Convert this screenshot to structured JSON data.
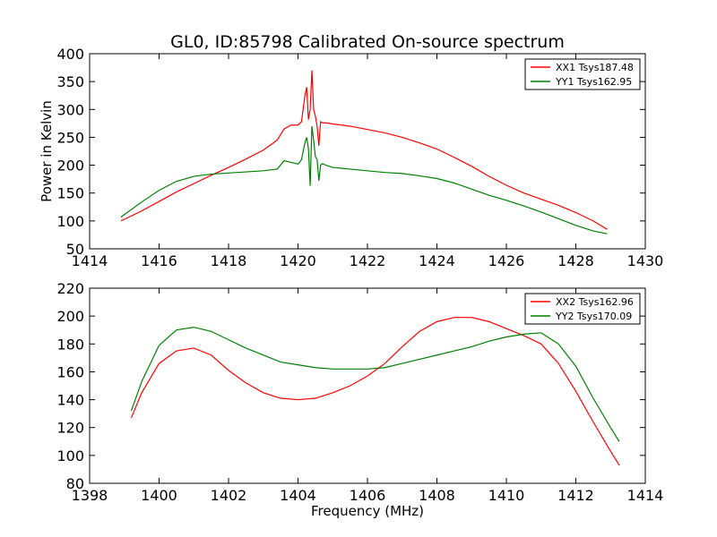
{
  "title": "GL0, ID:85798 Calibrated On-source spectrum",
  "chart_data": [
    {
      "type": "line",
      "ylabel": "Power in Kelvin",
      "xlabel": "",
      "xlim": [
        1414,
        1430
      ],
      "ylim": [
        50,
        400
      ],
      "xticks": [
        1414,
        1416,
        1418,
        1420,
        1422,
        1424,
        1426,
        1428,
        1430
      ],
      "yticks": [
        50,
        100,
        150,
        200,
        250,
        300,
        350,
        400
      ],
      "legend_position": "top-right",
      "series": [
        {
          "name": "XX1 Tsys187.48",
          "color": "#ff0000",
          "x": [
            1414.9,
            1415.5,
            1416.0,
            1416.5,
            1417.0,
            1417.5,
            1418.0,
            1418.5,
            1419.0,
            1419.4,
            1419.6,
            1419.8,
            1420.0,
            1420.1,
            1420.2,
            1420.25,
            1420.3,
            1420.35,
            1420.4,
            1420.45,
            1420.5,
            1420.55,
            1420.6,
            1420.65,
            1420.7,
            1420.8,
            1421.0,
            1421.5,
            1422.0,
            1422.5,
            1423.0,
            1423.5,
            1424.0,
            1424.5,
            1425.0,
            1425.5,
            1426.0,
            1426.5,
            1427.0,
            1427.5,
            1428.0,
            1428.5,
            1428.9
          ],
          "y": [
            100,
            118,
            135,
            152,
            167,
            182,
            196,
            211,
            227,
            245,
            265,
            272,
            272,
            278,
            325,
            340,
            282,
            300,
            370,
            300,
            288,
            270,
            235,
            278,
            276,
            276,
            274,
            270,
            264,
            258,
            250,
            240,
            229,
            214,
            198,
            180,
            164,
            150,
            139,
            128,
            115,
            100,
            85
          ]
        },
        {
          "name": "YY1 Tsys162.95",
          "color": "#008000",
          "x": [
            1414.9,
            1415.5,
            1416.0,
            1416.5,
            1417.0,
            1417.5,
            1418.0,
            1418.5,
            1419.0,
            1419.4,
            1419.6,
            1419.8,
            1420.0,
            1420.1,
            1420.2,
            1420.25,
            1420.3,
            1420.35,
            1420.4,
            1420.45,
            1420.5,
            1420.55,
            1420.6,
            1420.65,
            1420.7,
            1420.8,
            1421.0,
            1421.5,
            1422.0,
            1422.5,
            1423.0,
            1423.5,
            1424.0,
            1424.5,
            1425.0,
            1425.5,
            1426.0,
            1426.5,
            1427.0,
            1427.5,
            1428.0,
            1428.5,
            1428.9
          ],
          "y": [
            107,
            134,
            155,
            171,
            180,
            184,
            186,
            188,
            190,
            193,
            208,
            205,
            202,
            210,
            240,
            250,
            230,
            163,
            270,
            245,
            215,
            210,
            172,
            200,
            203,
            200,
            196,
            193,
            190,
            187,
            185,
            181,
            176,
            168,
            157,
            146,
            137,
            127,
            116,
            104,
            92,
            82,
            77
          ]
        }
      ]
    },
    {
      "type": "line",
      "xlabel": "Frequency (MHz)",
      "ylabel": "",
      "xlim": [
        1398,
        1414
      ],
      "ylim": [
        80,
        220
      ],
      "xticks": [
        1398,
        1400,
        1402,
        1404,
        1406,
        1408,
        1410,
        1412,
        1414
      ],
      "yticks": [
        80,
        100,
        120,
        140,
        160,
        180,
        200,
        220
      ],
      "legend_position": "top-right",
      "series": [
        {
          "name": "XX2 Tsys162.96",
          "color": "#ff0000",
          "x": [
            1399.2,
            1399.5,
            1400.0,
            1400.5,
            1401.0,
            1401.5,
            1402.0,
            1402.5,
            1403.0,
            1403.5,
            1404.0,
            1404.5,
            1405.0,
            1405.5,
            1406.0,
            1406.5,
            1407.0,
            1407.5,
            1408.0,
            1408.5,
            1409.0,
            1409.5,
            1410.0,
            1410.5,
            1411.0,
            1411.5,
            1412.0,
            1412.5,
            1413.0,
            1413.25
          ],
          "y": [
            127,
            145,
            166,
            175,
            177,
            172,
            161,
            152,
            145,
            141,
            140,
            141,
            145,
            150,
            157,
            166,
            178,
            189,
            196,
            199,
            199,
            196,
            191,
            186,
            180,
            166,
            146,
            124,
            103,
            93
          ]
        },
        {
          "name": "YY2 Tsys170.09",
          "color": "#008000",
          "x": [
            1399.2,
            1399.5,
            1400.0,
            1400.5,
            1401.0,
            1401.5,
            1402.0,
            1402.5,
            1403.0,
            1403.5,
            1404.0,
            1404.5,
            1405.0,
            1405.5,
            1406.0,
            1406.5,
            1407.0,
            1407.5,
            1408.0,
            1408.5,
            1409.0,
            1409.5,
            1410.0,
            1410.5,
            1411.0,
            1411.5,
            1412.0,
            1412.5,
            1413.0,
            1413.25
          ],
          "y": [
            132,
            153,
            179,
            190,
            192,
            189,
            183,
            177,
            172,
            167,
            165,
            163,
            162,
            162,
            162,
            163,
            166,
            169,
            172,
            175,
            178,
            182,
            185,
            187,
            188,
            180,
            164,
            141,
            120,
            110
          ]
        }
      ]
    }
  ]
}
